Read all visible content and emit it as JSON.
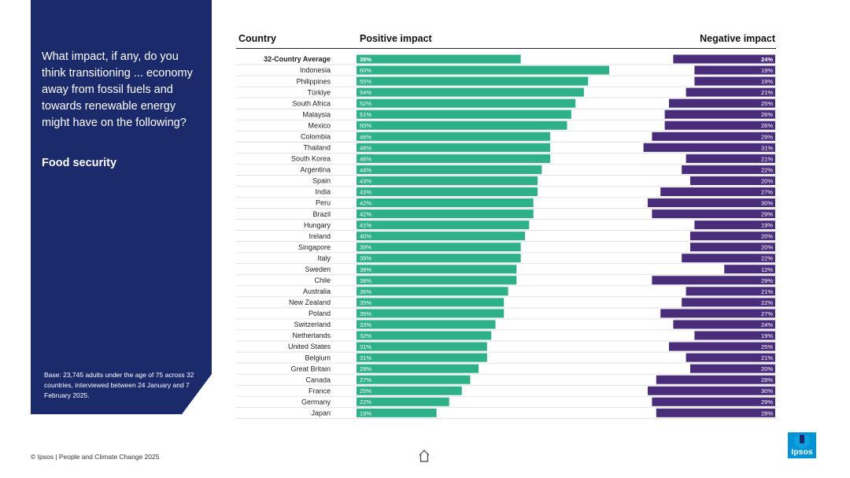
{
  "panel": {
    "question": "What impact, if any, do you think transitioning ... economy away from fossil fuels and towards renewable energy might have on the following?",
    "subject": "Food security",
    "base": "Base: 23,745 adults under the age of 75 across 32 countries, interviewed between 24 January and 7 February 2025."
  },
  "headers": {
    "country": "Country",
    "positive": "Positive impact",
    "negative": "Negative impact"
  },
  "footer": {
    "text": "© Ipsos | People and Climate Change 2025"
  },
  "logo": {
    "text": "Ipsos"
  },
  "colors": {
    "positive": "#2eb089",
    "negative": "#4a2d7a",
    "panel": "#1b2a6b"
  },
  "icons": {
    "home": "home-icon",
    "logo": "ipsos-logo"
  },
  "chart_data": {
    "type": "bar",
    "title": "Food security",
    "categories": [
      "32-Country Average",
      "Indonesia",
      "Philippines",
      "Türkiye",
      "South Africa",
      "Malaysia",
      "Mexico",
      "Colombia",
      "Thailand",
      "South Korea",
      "Argentina",
      "Spain",
      "India",
      "Peru",
      "Brazil",
      "Hungary",
      "Ireland",
      "Singapore",
      "Italy",
      "Sweden",
      "Chile",
      "Australia",
      "New Zealand",
      "Poland",
      "Switzerland",
      "Netherlands",
      "United States",
      "Belgium",
      "Great Britain",
      "Canada",
      "France",
      "Germany",
      "Japan"
    ],
    "series": [
      {
        "name": "Positive impact",
        "values": [
          39,
          60,
          55,
          54,
          52,
          51,
          50,
          46,
          46,
          46,
          44,
          43,
          43,
          42,
          42,
          41,
          40,
          39,
          39,
          38,
          38,
          36,
          35,
          35,
          33,
          32,
          31,
          31,
          29,
          27,
          25,
          22,
          19
        ]
      },
      {
        "name": "Negative impact",
        "values": [
          24,
          19,
          19,
          21,
          25,
          26,
          26,
          29,
          31,
          21,
          22,
          20,
          27,
          30,
          29,
          19,
          20,
          20,
          22,
          12,
          29,
          21,
          22,
          27,
          24,
          19,
          25,
          21,
          20,
          28,
          30,
          29,
          28
        ]
      }
    ],
    "value_suffix": "%",
    "highlight_first": true
  }
}
